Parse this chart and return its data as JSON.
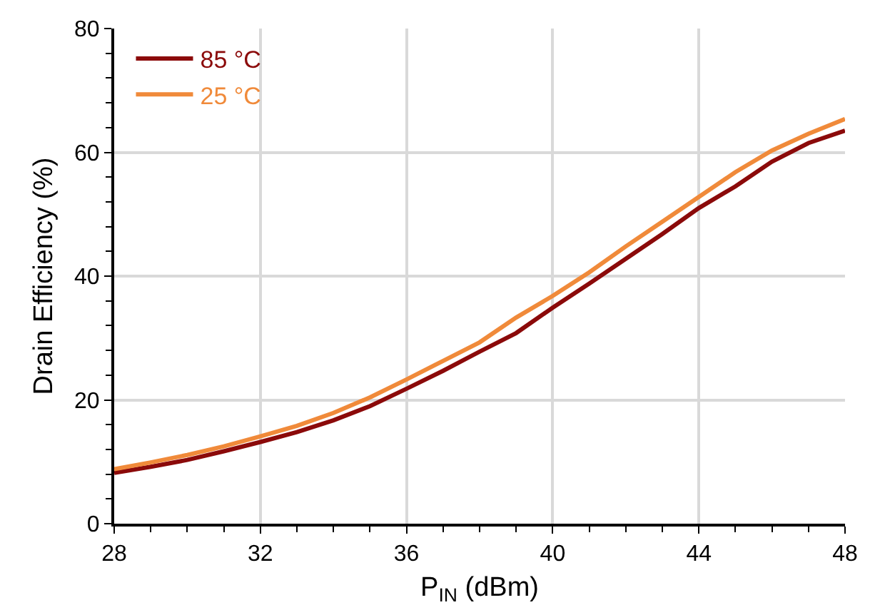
{
  "chart_data": {
    "type": "line",
    "xlabel": "P$_{IN}$ (dBm)",
    "ylabel": "Drain Efficiency (%)",
    "x": [
      28,
      29,
      30,
      31,
      32,
      33,
      34,
      35,
      36,
      37,
      38,
      39,
      40,
      41,
      42,
      43,
      44,
      45,
      46,
      47,
      48
    ],
    "series": [
      {
        "name": "85 °C",
        "color": "#8b0a0a",
        "values": [
          8.2,
          9.2,
          10.3,
          11.7,
          13.2,
          14.8,
          16.7,
          19,
          21.8,
          24.7,
          27.8,
          30.8,
          34.9,
          38.8,
          42.8,
          46.8,
          51,
          54.5,
          58.5,
          61.5,
          63.5
        ]
      },
      {
        "name": "25 °C",
        "color": "#f08a3a",
        "values": [
          8.8,
          9.9,
          11.1,
          12.5,
          14.1,
          15.8,
          17.9,
          20.4,
          23.3,
          26.3,
          29.3,
          33.3,
          36.8,
          40.6,
          44.8,
          48.8,
          52.8,
          56.8,
          60.3,
          63,
          65.4
        ]
      }
    ],
    "xlim": [
      28,
      48
    ],
    "xticks": [
      28,
      32,
      36,
      40,
      44,
      48
    ],
    "ylim": [
      0,
      80
    ],
    "yticks": [
      0,
      20,
      40,
      60,
      80
    ],
    "grid": true,
    "legend": "top left",
    "marker": "none",
    "line_style": "solid"
  }
}
